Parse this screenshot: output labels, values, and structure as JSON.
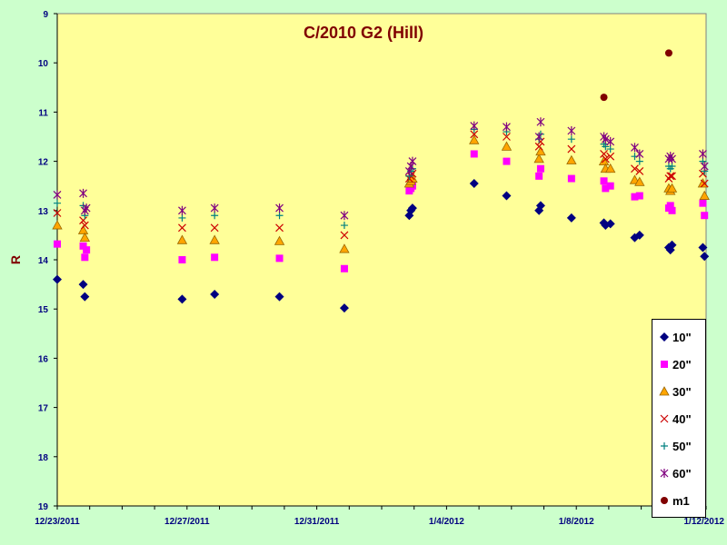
{
  "chart_data": {
    "type": "scatter",
    "title": "C/2010 G2 (Hill)",
    "xlabel": "",
    "ylabel": "R",
    "ylim": [
      19,
      9
    ],
    "y_inverted": true,
    "y_ticks": [
      "9",
      "10",
      "11",
      "12",
      "13",
      "14",
      "15",
      "16",
      "17",
      "18",
      "19"
    ],
    "x_ticks": [
      "12/23/2011",
      "12/27/2011",
      "12/31/2011",
      "1/4/2012",
      "1/8/2012",
      "1/12/2012"
    ],
    "x_tick_days": [
      0,
      4,
      8,
      12,
      16,
      20
    ],
    "xlim_days": [
      0,
      20
    ],
    "plot_background": "#ffff99",
    "page_background": "#ccffcc",
    "legend_position": "bottom-right",
    "series": [
      {
        "name": "10\"",
        "marker": "diamond",
        "color": "#000080",
        "points": [
          [
            0.0,
            14.4
          ],
          [
            0.8,
            14.5
          ],
          [
            0.85,
            14.75
          ],
          [
            3.85,
            14.8
          ],
          [
            4.85,
            14.7
          ],
          [
            6.85,
            14.75
          ],
          [
            8.85,
            14.98
          ],
          [
            10.85,
            13.1
          ],
          [
            10.9,
            13.0
          ],
          [
            10.95,
            12.95
          ],
          [
            12.85,
            12.45
          ],
          [
            13.85,
            12.7
          ],
          [
            14.85,
            13.0
          ],
          [
            14.9,
            12.9
          ],
          [
            15.85,
            13.15
          ],
          [
            16.85,
            13.25
          ],
          [
            16.9,
            13.3
          ],
          [
            17.05,
            13.27
          ],
          [
            17.8,
            13.55
          ],
          [
            17.95,
            13.5
          ],
          [
            18.85,
            13.75
          ],
          [
            18.9,
            13.8
          ],
          [
            18.95,
            13.7
          ],
          [
            19.9,
            13.75
          ],
          [
            19.95,
            13.93
          ]
        ]
      },
      {
        "name": "20\"",
        "marker": "square",
        "color": "#ff00ff",
        "points": [
          [
            0.0,
            13.68
          ],
          [
            0.8,
            13.72
          ],
          [
            0.85,
            13.95
          ],
          [
            0.9,
            13.8
          ],
          [
            3.85,
            14.0
          ],
          [
            4.85,
            13.95
          ],
          [
            6.85,
            13.97
          ],
          [
            8.85,
            14.18
          ],
          [
            10.85,
            12.6
          ],
          [
            10.9,
            12.55
          ],
          [
            10.95,
            12.5
          ],
          [
            12.85,
            11.85
          ],
          [
            13.85,
            12.0
          ],
          [
            14.85,
            12.3
          ],
          [
            14.9,
            12.15
          ],
          [
            15.85,
            12.35
          ],
          [
            16.85,
            12.4
          ],
          [
            16.9,
            12.55
          ],
          [
            17.05,
            12.5
          ],
          [
            17.8,
            12.72
          ],
          [
            17.95,
            12.7
          ],
          [
            18.85,
            12.95
          ],
          [
            18.9,
            12.9
          ],
          [
            18.95,
            13.0
          ],
          [
            19.9,
            12.85
          ],
          [
            19.95,
            13.1
          ]
        ]
      },
      {
        "name": "30\"",
        "marker": "triangle",
        "color": "#ffa500",
        "points": [
          [
            0.0,
            13.3
          ],
          [
            0.8,
            13.4
          ],
          [
            0.85,
            13.55
          ],
          [
            3.85,
            13.6
          ],
          [
            4.85,
            13.6
          ],
          [
            6.85,
            13.62
          ],
          [
            8.85,
            13.78
          ],
          [
            10.85,
            12.45
          ],
          [
            10.9,
            12.4
          ],
          [
            10.95,
            12.35
          ],
          [
            12.85,
            11.57
          ],
          [
            13.85,
            11.7
          ],
          [
            14.85,
            11.95
          ],
          [
            14.9,
            11.8
          ],
          [
            15.85,
            11.98
          ],
          [
            16.85,
            12.0
          ],
          [
            16.9,
            12.15
          ],
          [
            17.05,
            12.15
          ],
          [
            17.8,
            12.38
          ],
          [
            17.95,
            12.42
          ],
          [
            18.85,
            12.55
          ],
          [
            18.9,
            12.6
          ],
          [
            18.95,
            12.55
          ],
          [
            19.9,
            12.45
          ],
          [
            19.95,
            12.7
          ]
        ]
      },
      {
        "name": "40\"",
        "marker": "x",
        "color": "#cc0000",
        "points": [
          [
            0.0,
            13.05
          ],
          [
            0.8,
            13.2
          ],
          [
            0.85,
            13.3
          ],
          [
            3.85,
            13.35
          ],
          [
            4.85,
            13.35
          ],
          [
            6.85,
            13.35
          ],
          [
            8.85,
            13.5
          ],
          [
            10.85,
            12.35
          ],
          [
            10.9,
            12.3
          ],
          [
            10.95,
            12.25
          ],
          [
            12.85,
            11.45
          ],
          [
            13.85,
            11.5
          ],
          [
            14.85,
            11.7
          ],
          [
            14.9,
            11.6
          ],
          [
            15.85,
            11.75
          ],
          [
            16.85,
            11.85
          ],
          [
            16.9,
            11.95
          ],
          [
            17.05,
            11.9
          ],
          [
            17.8,
            12.15
          ],
          [
            17.95,
            12.2
          ],
          [
            18.85,
            12.35
          ],
          [
            18.9,
            12.3
          ],
          [
            18.95,
            12.3
          ],
          [
            19.9,
            12.25
          ],
          [
            19.95,
            12.45
          ]
        ]
      },
      {
        "name": "50\"",
        "marker": "plus",
        "color": "#008080",
        "points": [
          [
            0.0,
            12.85
          ],
          [
            0.8,
            12.9
          ],
          [
            0.85,
            13.1
          ],
          [
            3.85,
            13.15
          ],
          [
            4.85,
            13.1
          ],
          [
            6.85,
            13.1
          ],
          [
            8.85,
            13.3
          ],
          [
            10.85,
            12.3
          ],
          [
            10.9,
            12.2
          ],
          [
            10.95,
            12.15
          ],
          [
            12.85,
            11.35
          ],
          [
            13.85,
            11.4
          ],
          [
            14.85,
            11.55
          ],
          [
            14.9,
            11.45
          ],
          [
            15.85,
            11.55
          ],
          [
            16.85,
            11.65
          ],
          [
            16.9,
            11.7
          ],
          [
            17.05,
            11.75
          ],
          [
            17.8,
            11.9
          ],
          [
            17.95,
            12.0
          ],
          [
            18.85,
            12.1
          ],
          [
            18.9,
            12.15
          ],
          [
            18.95,
            12.1
          ],
          [
            19.9,
            12.0
          ],
          [
            19.95,
            12.2
          ]
        ]
      },
      {
        "name": "60\"",
        "marker": "star",
        "color": "#800080",
        "points": [
          [
            0.0,
            12.68
          ],
          [
            0.8,
            12.65
          ],
          [
            0.85,
            13.0
          ],
          [
            0.9,
            12.95
          ],
          [
            3.85,
            13.0
          ],
          [
            4.85,
            12.95
          ],
          [
            6.85,
            12.95
          ],
          [
            8.85,
            13.1
          ],
          [
            10.85,
            12.2
          ],
          [
            10.9,
            12.1
          ],
          [
            10.95,
            12.0
          ],
          [
            12.85,
            11.28
          ],
          [
            13.85,
            11.3
          ],
          [
            14.85,
            11.5
          ],
          [
            14.9,
            11.2
          ],
          [
            15.85,
            11.38
          ],
          [
            16.85,
            11.5
          ],
          [
            16.9,
            11.55
          ],
          [
            17.05,
            11.6
          ],
          [
            17.8,
            11.72
          ],
          [
            17.95,
            11.85
          ],
          [
            18.85,
            11.95
          ],
          [
            18.9,
            11.9
          ],
          [
            18.95,
            11.95
          ],
          [
            19.9,
            11.85
          ],
          [
            19.95,
            12.1
          ]
        ]
      },
      {
        "name": "m1",
        "marker": "circle",
        "color": "#800000",
        "points": [
          [
            16.85,
            10.7
          ],
          [
            18.85,
            9.8
          ]
        ]
      }
    ]
  }
}
